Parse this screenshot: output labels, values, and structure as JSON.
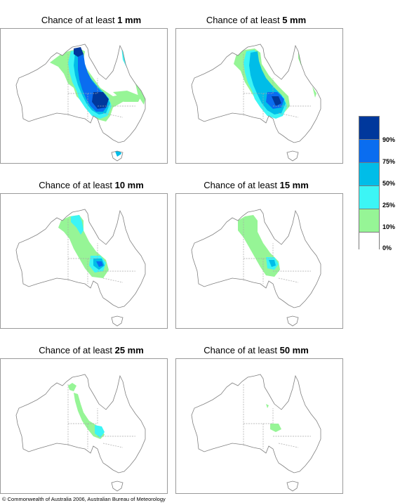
{
  "panels": [
    {
      "prefix": "Chance of at least ",
      "amount": "1 mm"
    },
    {
      "prefix": "Chance of at least ",
      "amount": "5 mm"
    },
    {
      "prefix": "Chance of at least ",
      "amount": "10 mm"
    },
    {
      "prefix": "Chance of at least ",
      "amount": "15 mm"
    },
    {
      "prefix": "Chance of at least ",
      "amount": "25 mm"
    },
    {
      "prefix": "Chance of at least ",
      "amount": "50 mm"
    }
  ],
  "legend": {
    "labels": [
      "90%",
      "75%",
      "50%",
      "25%",
      "10%",
      "0%"
    ],
    "colors": [
      "#00389c",
      "#0a6df0",
      "#00bde8",
      "#3cf5f5",
      "#96f596",
      "#ffffff"
    ]
  },
  "colors": {
    "coast": "#808080",
    "border": "#9a9a9a",
    "lt10": "#96f596",
    "lt25": "#3cf5f5",
    "lt50": "#00bde8",
    "lt75": "#0a6df0",
    "lt90": "#00389c"
  },
  "copyright": "© Commonwealth of Australia 2006, Australian Bureau of Meteorology"
}
